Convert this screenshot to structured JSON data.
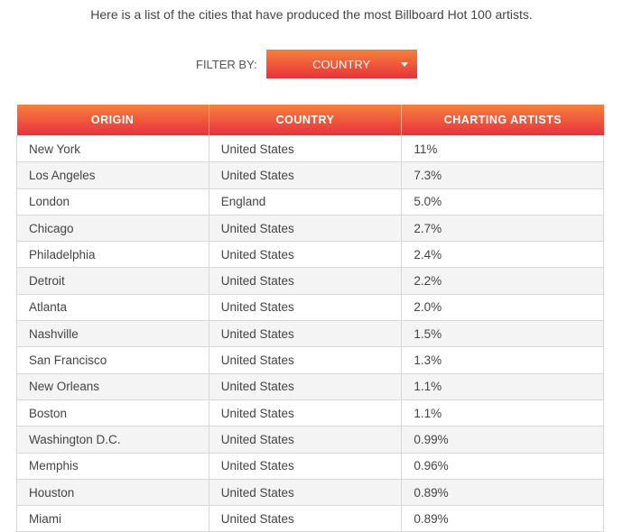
{
  "intro": "Here is a list of the cities that have produced the most Billboard Hot 100 artists.",
  "filter": {
    "label": "FILTER BY:",
    "selected": "COUNTRY",
    "icon": "caret-down-icon"
  },
  "colors": {
    "accent_top": "#f7803a",
    "accent_bottom": "#e8323c"
  },
  "table": {
    "headers": [
      "ORIGIN",
      "COUNTRY",
      "CHARTING ARTISTS"
    ],
    "rows": [
      [
        "New York",
        "United States",
        "11%"
      ],
      [
        "Los Angeles",
        "United States",
        "7.3%"
      ],
      [
        "London",
        "England",
        "5.0%"
      ],
      [
        "Chicago",
        "United States",
        "2.7%"
      ],
      [
        "Philadelphia",
        "United States",
        "2.4%"
      ],
      [
        "Detroit",
        "United States",
        "2.2%"
      ],
      [
        "Atlanta",
        "United States",
        "2.0%"
      ],
      [
        "Nashville",
        "United States",
        "1.5%"
      ],
      [
        "San Francisco",
        "United States",
        "1.3%"
      ],
      [
        "New Orleans",
        "United States",
        "1.1%"
      ],
      [
        "Boston",
        "United States",
        "1.1%"
      ],
      [
        "Washington D.C.",
        "United States",
        "0.99%"
      ],
      [
        "Memphis",
        "United States",
        "0.96%"
      ],
      [
        "Houston",
        "United States",
        "0.89%"
      ],
      [
        "Miami",
        "United States",
        "0.89%"
      ]
    ]
  }
}
